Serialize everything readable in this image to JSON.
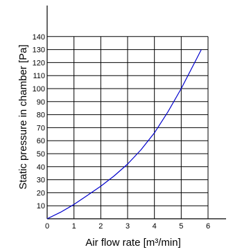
{
  "chart_data": {
    "type": "line",
    "title": "",
    "xlabel": "Air flow rate [m³/min]",
    "ylabel": "Static pressure in chamber [Pa]",
    "xlim": [
      0,
      6
    ],
    "ylim": [
      0,
      150
    ],
    "xticks": [
      0,
      1,
      2,
      3,
      4,
      5,
      6
    ],
    "yticks": [
      10,
      20,
      30,
      40,
      50,
      60,
      70,
      80,
      90,
      100,
      110,
      120,
      130,
      140
    ],
    "grid": true,
    "line_color": "#0000cc",
    "series": [
      {
        "x": [
          0,
          0.5,
          1.0,
          1.5,
          2.0,
          2.5,
          3.0,
          3.5,
          4.0,
          4.5,
          5.0,
          5.5,
          5.75
        ],
        "values": [
          0,
          5,
          11,
          18,
          25,
          33,
          42,
          53,
          66,
          82,
          100,
          120,
          130
        ]
      }
    ]
  }
}
